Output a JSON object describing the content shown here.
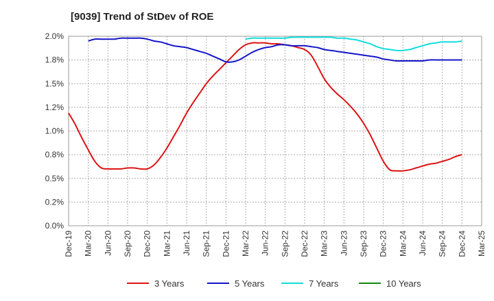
{
  "chart_data": {
    "type": "line",
    "title": "[9039]  Trend of StDev of ROE",
    "xlabel": "",
    "ylabel": "",
    "x_ticks": [
      "Dec-19",
      "Mar-20",
      "Jun-20",
      "Sep-20",
      "Dec-20",
      "Mar-21",
      "Jun-21",
      "Sep-21",
      "Dec-21",
      "Mar-22",
      "Jun-22",
      "Sep-22",
      "Dec-22",
      "Mar-23",
      "Jun-23",
      "Sep-23",
      "Dec-23",
      "Mar-24",
      "Jun-24",
      "Sep-24",
      "Dec-24",
      "Mar-25"
    ],
    "y_ticks": [
      "0.0%",
      "0.2%",
      "0.5%",
      "0.8%",
      "1.0%",
      "1.2%",
      "1.5%",
      "1.8%",
      "2.0%"
    ],
    "ylim": [
      0,
      2.0
    ],
    "grid": true,
    "legend_position": "bottom",
    "series": [
      {
        "name": "3 Years",
        "color": "#dd1111",
        "x": [
          "2019-12",
          "2020-01",
          "2020-02",
          "2020-03",
          "2020-04",
          "2020-05",
          "2020-06",
          "2020-07",
          "2020-08",
          "2020-09",
          "2020-10",
          "2020-11",
          "2020-12",
          "2021-01",
          "2021-02",
          "2021-03",
          "2021-04",
          "2021-05",
          "2021-06",
          "2021-07",
          "2021-08",
          "2021-09",
          "2021-10",
          "2021-11",
          "2021-12",
          "2022-01",
          "2022-02",
          "2022-03",
          "2022-04",
          "2022-05",
          "2022-06",
          "2022-07",
          "2022-08",
          "2022-09",
          "2022-10",
          "2022-11",
          "2022-12",
          "2023-01",
          "2023-02",
          "2023-03",
          "2023-04",
          "2023-05",
          "2023-06",
          "2023-07",
          "2023-08",
          "2023-09",
          "2023-10",
          "2023-11",
          "2023-12",
          "2024-01",
          "2024-02",
          "2024-03",
          "2024-04",
          "2024-05",
          "2024-06",
          "2024-07",
          "2024-08",
          "2024-09",
          "2024-10",
          "2024-11",
          "2024-12"
        ],
        "values": [
          1.19,
          1.07,
          0.93,
          0.8,
          0.68,
          0.61,
          0.6,
          0.6,
          0.6,
          0.61,
          0.61,
          0.6,
          0.6,
          0.64,
          0.72,
          0.82,
          0.94,
          1.06,
          1.19,
          1.3,
          1.4,
          1.5,
          1.58,
          1.65,
          1.72,
          1.79,
          1.86,
          1.91,
          1.93,
          1.93,
          1.93,
          1.92,
          1.92,
          1.91,
          1.9,
          1.88,
          1.86,
          1.8,
          1.68,
          1.55,
          1.46,
          1.39,
          1.33,
          1.26,
          1.18,
          1.08,
          0.96,
          0.82,
          0.68,
          0.59,
          0.58,
          0.58,
          0.59,
          0.61,
          0.63,
          0.65,
          0.66,
          0.68,
          0.7,
          0.73,
          0.75
        ]
      },
      {
        "name": "5 Years",
        "color": "#1414c8",
        "x": [
          "2020-03",
          "2020-04",
          "2020-05",
          "2020-06",
          "2020-07",
          "2020-08",
          "2020-09",
          "2020-10",
          "2020-11",
          "2020-12",
          "2021-01",
          "2021-02",
          "2021-03",
          "2021-04",
          "2021-05",
          "2021-06",
          "2021-07",
          "2021-08",
          "2021-09",
          "2021-10",
          "2021-11",
          "2021-12",
          "2022-01",
          "2022-02",
          "2022-03",
          "2022-04",
          "2022-05",
          "2022-06",
          "2022-07",
          "2022-08",
          "2022-09",
          "2022-10",
          "2022-11",
          "2022-12",
          "2023-01",
          "2023-02",
          "2023-03",
          "2023-04",
          "2023-05",
          "2023-06",
          "2023-07",
          "2023-08",
          "2023-09",
          "2023-10",
          "2023-11",
          "2023-12",
          "2024-01",
          "2024-02",
          "2024-03",
          "2024-04",
          "2024-05",
          "2024-06",
          "2024-07",
          "2024-08",
          "2024-09",
          "2024-10",
          "2024-11",
          "2024-12"
        ],
        "values": [
          1.95,
          1.97,
          1.97,
          1.97,
          1.97,
          1.98,
          1.98,
          1.98,
          1.98,
          1.97,
          1.95,
          1.94,
          1.92,
          1.9,
          1.89,
          1.88,
          1.86,
          1.84,
          1.82,
          1.79,
          1.76,
          1.73,
          1.73,
          1.75,
          1.79,
          1.83,
          1.86,
          1.88,
          1.89,
          1.91,
          1.91,
          1.9,
          1.9,
          1.9,
          1.89,
          1.88,
          1.86,
          1.85,
          1.84,
          1.83,
          1.82,
          1.81,
          1.8,
          1.79,
          1.78,
          1.76,
          1.75,
          1.74,
          1.74,
          1.74,
          1.74,
          1.74,
          1.75,
          1.75,
          1.75,
          1.75,
          1.75,
          1.75
        ]
      },
      {
        "name": "7 Years",
        "color": "#11dddd",
        "x": [
          "2022-03",
          "2022-04",
          "2022-05",
          "2022-06",
          "2022-07",
          "2022-08",
          "2022-09",
          "2022-10",
          "2022-11",
          "2022-12",
          "2023-01",
          "2023-02",
          "2023-03",
          "2023-04",
          "2023-05",
          "2023-06",
          "2023-07",
          "2023-08",
          "2023-09",
          "2023-10",
          "2023-11",
          "2023-12",
          "2024-01",
          "2024-02",
          "2024-03",
          "2024-04",
          "2024-05",
          "2024-06",
          "2024-07",
          "2024-08",
          "2024-09",
          "2024-10",
          "2024-11",
          "2024-12"
        ],
        "values": [
          1.97,
          1.98,
          1.98,
          1.98,
          1.98,
          1.98,
          1.98,
          1.99,
          1.99,
          1.99,
          1.99,
          1.99,
          1.99,
          1.99,
          1.98,
          1.98,
          1.97,
          1.96,
          1.94,
          1.92,
          1.89,
          1.87,
          1.86,
          1.85,
          1.85,
          1.86,
          1.88,
          1.9,
          1.92,
          1.93,
          1.94,
          1.94,
          1.94,
          1.95
        ]
      },
      {
        "name": "10 Years",
        "color": "#118811",
        "x": [],
        "values": []
      }
    ]
  }
}
